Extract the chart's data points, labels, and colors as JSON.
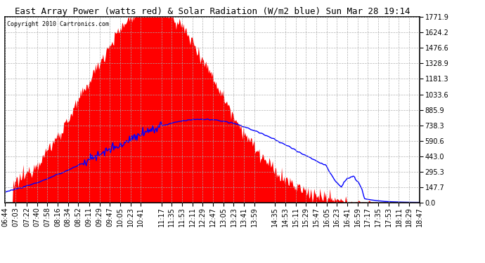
{
  "title": "East Array Power (watts red) & Solar Radiation (W/m2 blue) Sun Mar 28 19:14",
  "copyright": "Copyright 2010 Cartronics.com",
  "y_ticks": [
    0.0,
    147.7,
    295.3,
    443.0,
    590.6,
    738.3,
    885.9,
    1033.6,
    1181.3,
    1328.9,
    1476.6,
    1624.2,
    1771.9
  ],
  "x_labels": [
    "06:44",
    "07:03",
    "07:22",
    "07:40",
    "07:58",
    "08:16",
    "08:34",
    "08:52",
    "09:11",
    "09:29",
    "09:47",
    "10:05",
    "10:23",
    "10:41",
    "11:17",
    "11:35",
    "11:53",
    "12:11",
    "12:29",
    "12:47",
    "13:05",
    "13:23",
    "13:41",
    "13:59",
    "14:35",
    "14:53",
    "15:11",
    "15:29",
    "15:47",
    "16:05",
    "16:23",
    "16:41",
    "16:59",
    "17:17",
    "17:35",
    "17:53",
    "18:11",
    "18:29",
    "18:47"
  ],
  "y_max": 1771.9,
  "background_color": "#ffffff",
  "plot_bg_color": "#ffffff",
  "grid_color": "#aaaaaa",
  "red_fill_color": "#ff0000",
  "blue_line_color": "#0000ff",
  "title_fontsize": 9,
  "tick_fontsize": 7,
  "t_min_minutes": 404,
  "t_max_minutes": 1127
}
